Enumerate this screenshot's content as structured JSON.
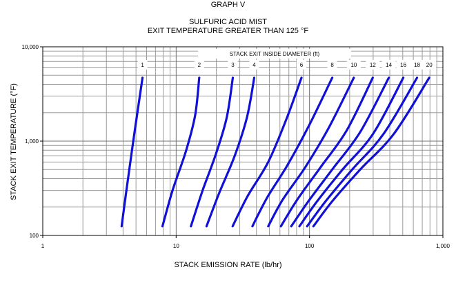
{
  "chart_data": {
    "type": "line",
    "graph_label": "GRAPH V",
    "title": "SULFURIC ACID MIST",
    "subtitle": "EXIT TEMPERATURE GREATER THAN 125 °F",
    "xlabel": "STACK EMISSION RATE (lb/hr)",
    "ylabel": "STACK EXIT TEMPERATURE (°F)",
    "x_scale": "log",
    "y_scale": "log",
    "xlim": [
      1,
      1000
    ],
    "ylim": [
      100,
      10000
    ],
    "x_ticks": [
      1,
      10,
      100,
      1000
    ],
    "x_tick_labels": [
      "1",
      "10",
      "100",
      "1,000"
    ],
    "y_ticks": [
      100,
      1000,
      10000
    ],
    "y_tick_labels": [
      "100",
      "1,000",
      "10,000"
    ],
    "grid": true,
    "legend_title": "STACK EXIT INSIDE DIAMETER (ft)",
    "line_color": "#1010d8",
    "series": [
      {
        "name": "1",
        "x": [
          3.9,
          4.3,
          4.9,
          5.6
        ],
        "y": [
          125,
          350,
          1300,
          4700
        ]
      },
      {
        "name": "2",
        "x": [
          7.9,
          9.4,
          11.9,
          13.9,
          14.9
        ],
        "y": [
          125,
          300,
          800,
          1900,
          4700
        ]
      },
      {
        "name": "3",
        "x": [
          12.9,
          15.8,
          20.0,
          24.0,
          26.6
        ],
        "y": [
          125,
          300,
          750,
          1800,
          4700
        ]
      },
      {
        "name": "4",
        "x": [
          16.9,
          21.0,
          27.5,
          34.0,
          38.5
        ],
        "y": [
          125,
          280,
          700,
          1800,
          4700
        ]
      },
      {
        "name": "6",
        "x": [
          26.5,
          34.3,
          49.0,
          67.0,
          87.0
        ],
        "y": [
          125,
          260,
          600,
          1700,
          4700
        ]
      },
      {
        "name": "8",
        "x": [
          37.3,
          48.0,
          68.0,
          100.0,
          148.0
        ],
        "y": [
          125,
          250,
          550,
          1500,
          4700
        ]
      },
      {
        "name": "10",
        "x": [
          49.0,
          63.0,
          93.0,
          140.0,
          215.0
        ],
        "y": [
          125,
          240,
          530,
          1400,
          4700
        ]
      },
      {
        "name": "12",
        "x": [
          61.0,
          81.0,
          120.0,
          190.0,
          298.0
        ],
        "y": [
          125,
          240,
          520,
          1300,
          4700
        ]
      },
      {
        "name": "14",
        "x": [
          73.0,
          98.0,
          148.0,
          240.0,
          393.0
        ],
        "y": [
          125,
          230,
          500,
          1250,
          4700
        ]
      },
      {
        "name": "16",
        "x": [
          84.0,
          114.0,
          177.0,
          300.0,
          505.0
        ],
        "y": [
          125,
          230,
          500,
          1200,
          4700
        ]
      },
      {
        "name": "18",
        "x": [
          96.0,
          132.0,
          209.0,
          360.0,
          640.0
        ],
        "y": [
          125,
          230,
          500,
          1200,
          4700
        ]
      },
      {
        "name": "20",
        "x": [
          107.0,
          148.0,
          240.0,
          430.0,
          790.0
        ],
        "y": [
          125,
          230,
          500,
          1200,
          4700
        ]
      }
    ]
  }
}
